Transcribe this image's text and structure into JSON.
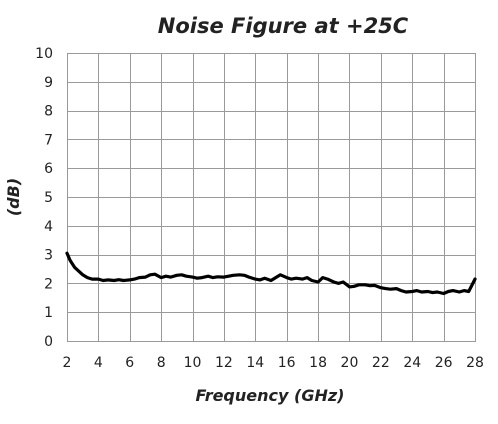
{
  "chart_data": {
    "type": "line",
    "title": "Noise Figure at +25C",
    "xlabel": "Frequency (GHz)",
    "ylabel": "(dB)",
    "xlim": [
      2,
      28
    ],
    "ylim": [
      0,
      10
    ],
    "x_ticks": [
      2,
      4,
      6,
      8,
      10,
      12,
      14,
      16,
      18,
      20,
      22,
      24,
      26,
      28
    ],
    "y_ticks": [
      0,
      1,
      2,
      3,
      4,
      5,
      6,
      7,
      8,
      9,
      10
    ],
    "grid": true,
    "line_color": "#000000",
    "grid_color": "#9a9a9a",
    "series": [
      {
        "x": [
          2.0,
          2.2,
          2.5,
          2.8,
          3.0,
          3.3,
          3.6,
          4.0,
          4.3,
          4.6,
          5.0,
          5.3,
          5.6,
          6.0,
          6.3,
          6.6,
          7.0,
          7.3,
          7.6,
          8.0,
          8.3,
          8.6,
          9.0,
          9.3,
          9.6,
          10.0,
          10.3,
          10.6,
          11.0,
          11.3,
          11.6,
          12.0,
          12.3,
          12.6,
          13.0,
          13.3,
          13.6,
          14.0,
          14.3,
          14.6,
          15.0,
          15.3,
          15.6,
          16.0,
          16.3,
          16.6,
          17.0,
          17.3,
          17.6,
          18.0,
          18.3,
          18.6,
          19.0,
          19.3,
          19.6,
          20.0,
          20.3,
          20.6,
          21.0,
          21.3,
          21.6,
          22.0,
          22.3,
          22.6,
          23.0,
          23.3,
          23.6,
          24.0,
          24.3,
          24.6,
          25.0,
          25.3,
          25.6,
          26.0,
          26.3,
          26.6,
          27.0,
          27.3,
          27.6,
          28.0
        ],
        "values": [
          3.05,
          2.8,
          2.55,
          2.4,
          2.3,
          2.2,
          2.15,
          2.15,
          2.1,
          2.12,
          2.1,
          2.13,
          2.1,
          2.12,
          2.15,
          2.2,
          2.22,
          2.3,
          2.32,
          2.2,
          2.25,
          2.22,
          2.28,
          2.3,
          2.25,
          2.22,
          2.18,
          2.2,
          2.25,
          2.2,
          2.23,
          2.22,
          2.25,
          2.28,
          2.3,
          2.28,
          2.22,
          2.15,
          2.12,
          2.18,
          2.1,
          2.2,
          2.3,
          2.2,
          2.15,
          2.18,
          2.15,
          2.2,
          2.1,
          2.05,
          2.2,
          2.15,
          2.05,
          2.0,
          2.05,
          1.88,
          1.9,
          1.95,
          1.95,
          1.92,
          1.93,
          1.85,
          1.82,
          1.8,
          1.82,
          1.75,
          1.7,
          1.72,
          1.75,
          1.7,
          1.72,
          1.68,
          1.7,
          1.65,
          1.72,
          1.75,
          1.7,
          1.75,
          1.72,
          2.15
        ]
      }
    ]
  }
}
